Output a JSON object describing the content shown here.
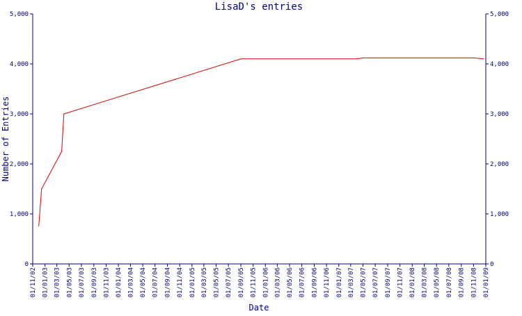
{
  "colors": {
    "axis": "#000080",
    "series": "#dd0000",
    "text": "#000080",
    "background": "#ffffff"
  },
  "chart_data": {
    "type": "line",
    "title": "LisaD's entries",
    "xlabel": "Date",
    "ylabel": "Number of Entries",
    "ylim": [
      0,
      5000
    ],
    "xlim": [
      "2002-11-01",
      "2009-01-01"
    ],
    "grid": false,
    "yticks": [
      0,
      1000,
      2000,
      3000,
      4000,
      5000
    ],
    "ytick_labels": [
      "0",
      "1,000",
      "2,000",
      "3,000",
      "4,000",
      "5,000"
    ],
    "right_axis": true,
    "x_tick_labels": [
      "01/11/02",
      "01/01/03",
      "01/03/03",
      "01/05/03",
      "01/07/03",
      "01/09/03",
      "01/11/03",
      "01/01/04",
      "01/03/04",
      "01/05/04",
      "01/07/04",
      "01/09/04",
      "01/11/04",
      "01/01/05",
      "01/03/05",
      "01/05/05",
      "01/07/05",
      "01/09/05",
      "01/11/05",
      "01/01/06",
      "01/03/06",
      "01/05/06",
      "01/07/06",
      "01/09/06",
      "01/11/06",
      "01/01/07",
      "01/03/07",
      "01/05/07",
      "01/07/07",
      "01/09/07",
      "01/11/07",
      "01/01/08",
      "01/03/08",
      "01/05/08",
      "01/07/08",
      "01/09/08",
      "01/11/08",
      "01/01/09"
    ],
    "series": [
      {
        "x": [
          "2002-12-01",
          "2002-12-15",
          "2003-03-25",
          "2003-04-05",
          "2005-09-01",
          "2007-04-01",
          "2007-05-01",
          "2008-11-01",
          "2008-12-20"
        ],
        "values": [
          760,
          1500,
          2250,
          3000,
          4100,
          4100,
          4120,
          4120,
          4100
        ]
      }
    ]
  }
}
